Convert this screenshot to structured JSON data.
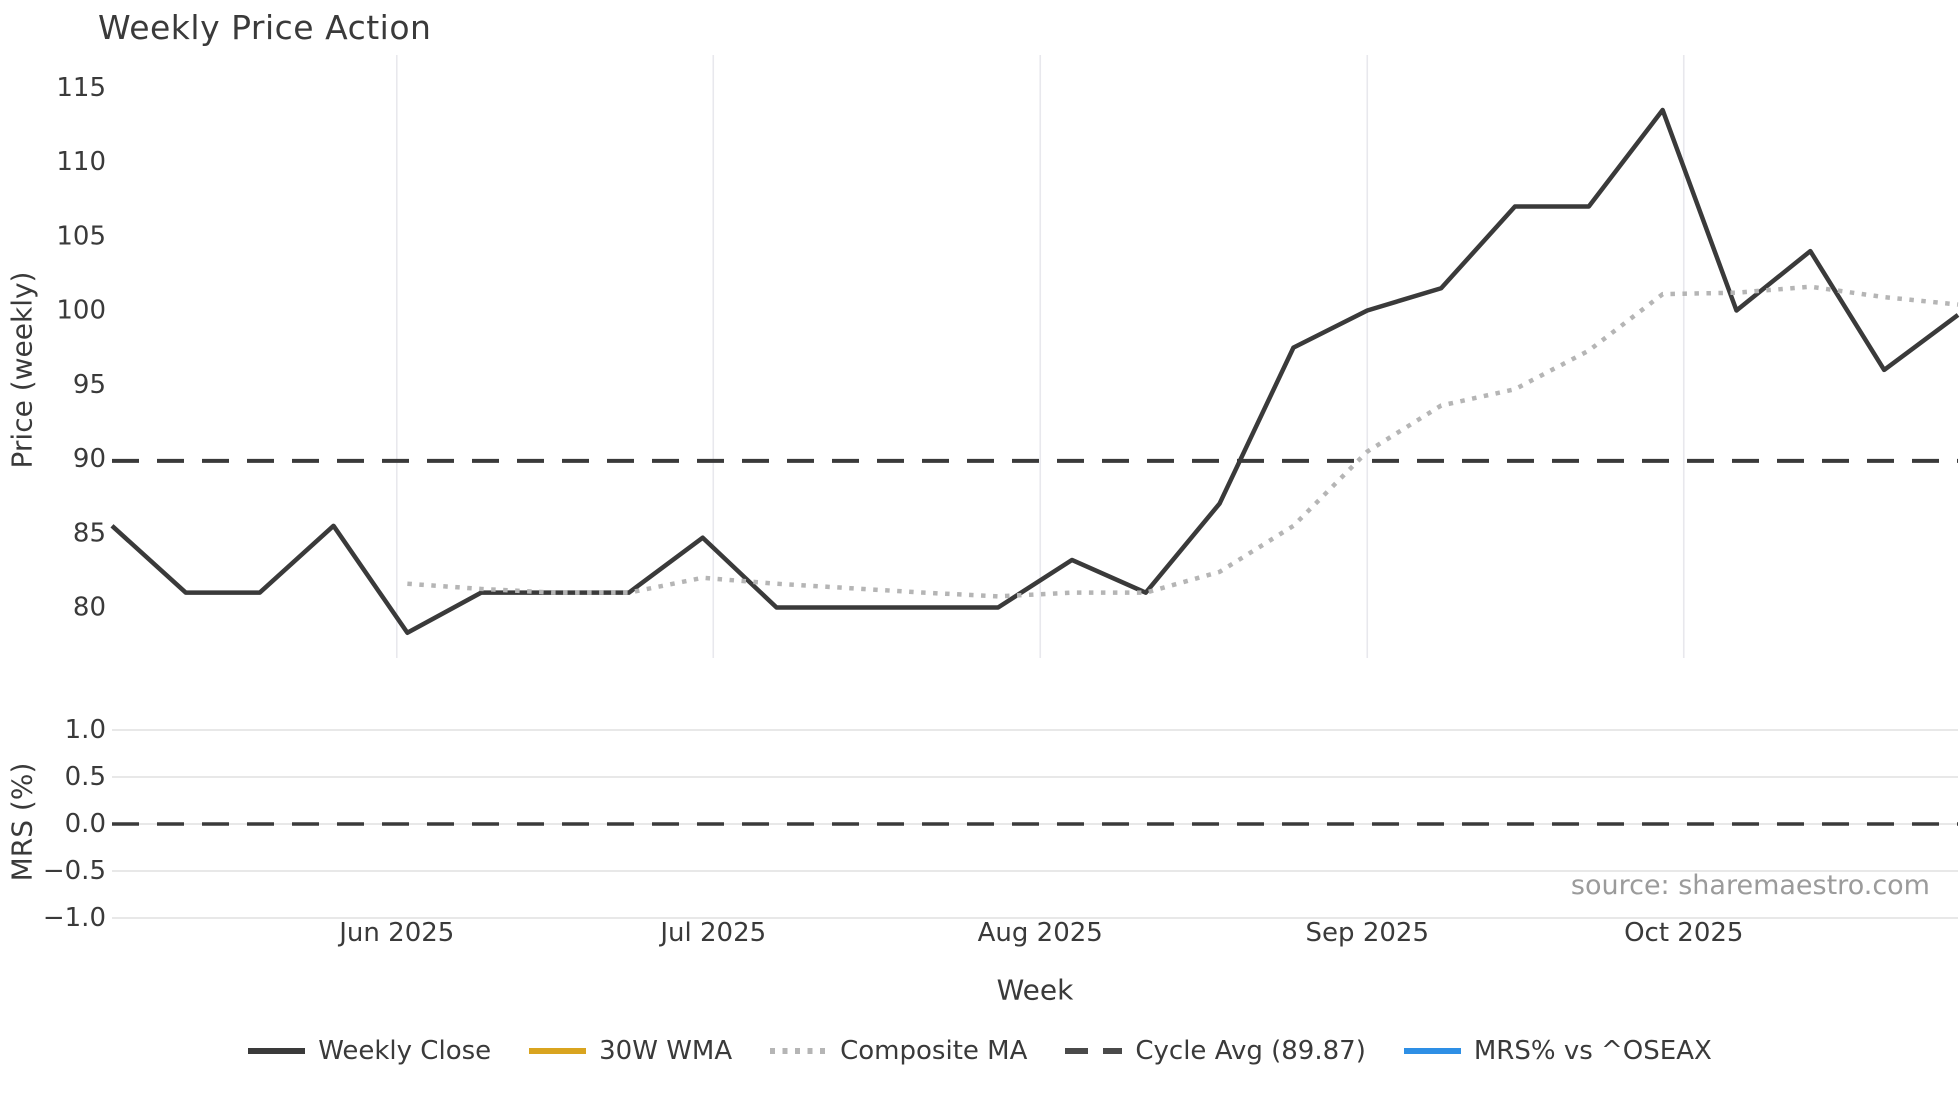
{
  "chart_data": {
    "type": "line",
    "title": "Weekly Price Action",
    "xlabel": "Week",
    "source": "source: sharemaestro.com",
    "x": [
      "2025-05-05",
      "2025-05-12",
      "2025-05-19",
      "2025-05-26",
      "2025-06-02",
      "2025-06-09",
      "2025-06-16",
      "2025-06-23",
      "2025-06-30",
      "2025-07-07",
      "2025-07-14",
      "2025-07-21",
      "2025-07-28",
      "2025-08-04",
      "2025-08-11",
      "2025-08-18",
      "2025-08-25",
      "2025-09-01",
      "2025-09-08",
      "2025-09-15",
      "2025-09-22",
      "2025-09-29",
      "2025-10-06",
      "2025-10-13",
      "2025-10-20",
      "2025-10-27"
    ],
    "x_ticks": [
      {
        "label": "Jun 2025",
        "index": 3.857
      },
      {
        "label": "Jul 2025",
        "index": 8.143
      },
      {
        "label": "Aug 2025",
        "index": 12.571
      },
      {
        "label": "Sep 2025",
        "index": 17.0
      },
      {
        "label": "Oct 2025",
        "index": 21.286
      }
    ],
    "series": [
      {
        "name": "Weekly Close",
        "panel": "price",
        "style": "solid",
        "color": "#3a3a3a",
        "width": 4.5,
        "values": [
          85.5,
          81.0,
          81.0,
          85.5,
          78.3,
          81.0,
          81.0,
          81.0,
          84.7,
          80.0,
          80.0,
          80.0,
          80.0,
          83.2,
          81.0,
          87.0,
          97.5,
          100.0,
          101.5,
          107.0,
          107.0,
          113.5,
          100.0,
          104.0,
          96.0,
          99.7
        ]
      },
      {
        "name": "30W WMA",
        "panel": "price",
        "style": "solid",
        "color": "#d9a41f",
        "width": 4.5,
        "values": []
      },
      {
        "name": "Composite MA",
        "panel": "price",
        "style": "dotted",
        "color": "#b5b5b5",
        "width": 4.5,
        "values": [
          null,
          null,
          null,
          null,
          81.6,
          81.25,
          81.0,
          81.0,
          82.0,
          81.6,
          81.3,
          81.0,
          80.75,
          81.0,
          81.0,
          82.4,
          85.5,
          90.5,
          93.6,
          94.7,
          97.3,
          101.1,
          101.2,
          101.6,
          100.9,
          100.4
        ]
      },
      {
        "name": "Cycle Avg (89.87)",
        "panel": "price",
        "style": "dashed",
        "color": "#3a3a3a",
        "width": 4,
        "hline": 89.87
      },
      {
        "name": "MRS% vs ^OSEAX",
        "panel": "mrs",
        "style": "solid",
        "color": "#2e8fe5",
        "width": 4.5,
        "values": []
      }
    ],
    "price_panel": {
      "ylabel": "Price (weekly)",
      "yticks": [
        115,
        110,
        105,
        100,
        95,
        90,
        85,
        80
      ],
      "ylim": [
        76.5,
        117.2
      ],
      "grid": "vertical-months"
    },
    "mrs_panel": {
      "ylabel": "MRS (%)",
      "yticks": [
        {
          "label": "1.0",
          "value": 1.0
        },
        {
          "label": "0.5",
          "value": 0.5
        },
        {
          "label": "0.0",
          "value": 0.0
        },
        {
          "label": "−0.5",
          "value": -0.5
        },
        {
          "label": "−1.0",
          "value": -1.0
        }
      ],
      "ylim": [
        -1.16,
        1.16
      ],
      "zero_line": {
        "style": "dashed",
        "color": "#3a3a3a",
        "value": 0.0
      },
      "grid": "horizontal"
    },
    "legend": {
      "position": "bottom-center",
      "items": [
        {
          "label": "Weekly Close",
          "color": "#3a3a3a",
          "style": "solid"
        },
        {
          "label": "30W WMA",
          "color": "#d9a41f",
          "style": "solid"
        },
        {
          "label": "Composite MA",
          "color": "#b5b5b5",
          "style": "dotted"
        },
        {
          "label": "Cycle Avg (89.87)",
          "color": "#4a4a4a",
          "style": "dashed"
        },
        {
          "label": "MRS% vs ^OSEAX",
          "color": "#2e8fe5",
          "style": "solid"
        }
      ]
    },
    "colors": {
      "text": "#3a3a3a",
      "grid_vertical": "#e8e8ed",
      "grid_horizontal": "#e8e8e8",
      "source_text": "#9b9b9b",
      "background": "#ffffff"
    }
  }
}
